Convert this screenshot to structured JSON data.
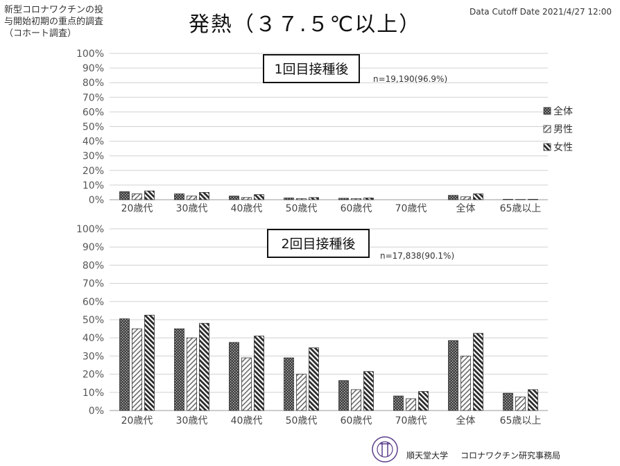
{
  "header": {
    "subtitle": "新型コロナワクチンの投\n与開始初期の重点的調査\n（コホート調査）",
    "title": "発熱（３７.５℃以上）",
    "cutoff": "Data Cutoff Date 2021/4/27 12:00"
  },
  "legend": {
    "items": [
      "全体",
      "男性",
      "女性"
    ]
  },
  "footer": {
    "org": "順天堂大学",
    "dept": "コロナワクチン研究事務局",
    "logo_text": "JUNTENDO UNIVERSITY"
  },
  "colors": {
    "all": "#3a3a3a",
    "male": "#bdbdbd",
    "female": "#2a2a2a",
    "grid": "#d0d0d0",
    "axis": "#9a9a9a"
  },
  "chart_data": [
    {
      "type": "bar",
      "title": "1回目接種後",
      "annotation": "n=19,190(96.9%)",
      "categories": [
        "20歳代",
        "30歳代",
        "40歳代",
        "50歳代",
        "60歳代",
        "70歳代",
        "全体",
        "65歳以上"
      ],
      "yticks": [
        "0%",
        "10%",
        "20%",
        "30%",
        "40%",
        "50%",
        "60%",
        "70%",
        "80%",
        "90%",
        "100%"
      ],
      "ylim": [
        0,
        100
      ],
      "legend_position": "right",
      "series": [
        {
          "name": "全体",
          "values": [
            5.5,
            4.0,
            2.5,
            1.2,
            1.0,
            0.0,
            3.0,
            0.3
          ]
        },
        {
          "name": "男性",
          "values": [
            4.0,
            2.5,
            1.5,
            0.8,
            0.8,
            0.0,
            2.0,
            0.2
          ]
        },
        {
          "name": "女性",
          "values": [
            6.0,
            5.0,
            3.5,
            1.5,
            1.2,
            0.0,
            4.0,
            0.3
          ]
        }
      ]
    },
    {
      "type": "bar",
      "title": "2回目接種後",
      "annotation": "n=17,838(90.1%)",
      "categories": [
        "20歳代",
        "30歳代",
        "40歳代",
        "50歳代",
        "60歳代",
        "70歳代",
        "全体",
        "65歳以上"
      ],
      "yticks": [
        "0%",
        "10%",
        "20%",
        "30%",
        "40%",
        "50%",
        "60%",
        "70%",
        "80%",
        "90%",
        "100%"
      ],
      "ylim": [
        0,
        100
      ],
      "series": [
        {
          "name": "全体",
          "values": [
            50.5,
            45.0,
            37.5,
            29.0,
            16.5,
            8.0,
            38.5,
            9.5
          ]
        },
        {
          "name": "男性",
          "values": [
            45.0,
            40.0,
            29.0,
            20.0,
            11.5,
            6.5,
            30.0,
            7.5
          ]
        },
        {
          "name": "女性",
          "values": [
            52.5,
            48.0,
            41.0,
            34.5,
            21.5,
            10.5,
            42.5,
            11.5
          ]
        }
      ]
    }
  ]
}
